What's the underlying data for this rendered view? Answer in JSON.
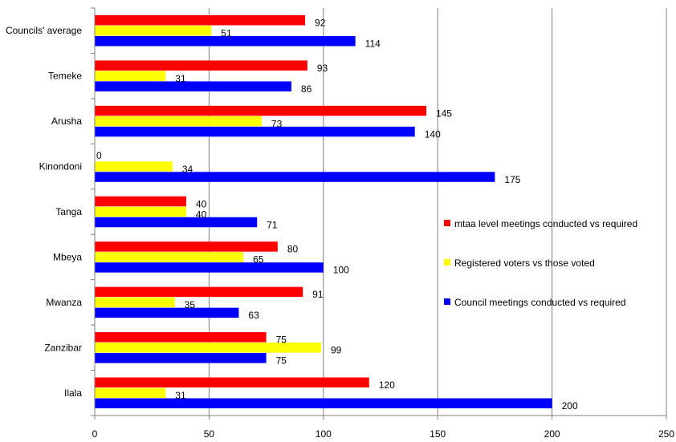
{
  "chart_data": {
    "type": "bar",
    "orientation": "horizontal",
    "categories": [
      "Councils' average",
      "Temeke",
      "Arusha",
      "Kinondoni",
      "Tanga",
      "Mbeya",
      "Mwanza",
      "Zanzibar",
      "Ilala"
    ],
    "series": [
      {
        "name": "mtaa level meetings conducted vs required",
        "color": "#ff0000",
        "values": [
          92,
          93,
          145,
          0,
          40,
          80,
          91,
          75,
          120
        ]
      },
      {
        "name": "Registered voters vs those voted",
        "color": "#ffff00",
        "values": [
          51,
          31,
          73,
          34,
          40,
          65,
          35,
          99,
          31
        ]
      },
      {
        "name": "Council meetings conducted  vs required",
        "color": "#0000ff",
        "values": [
          114,
          86,
          140,
          175,
          71,
          100,
          63,
          75,
          200
        ]
      }
    ],
    "xlim": [
      0,
      250
    ],
    "xticks": [
      0,
      50,
      100,
      150,
      200,
      250
    ],
    "grid": "vertical",
    "legend_position": "right",
    "data_labels": true,
    "title": "",
    "xlabel": "",
    "ylabel": ""
  }
}
